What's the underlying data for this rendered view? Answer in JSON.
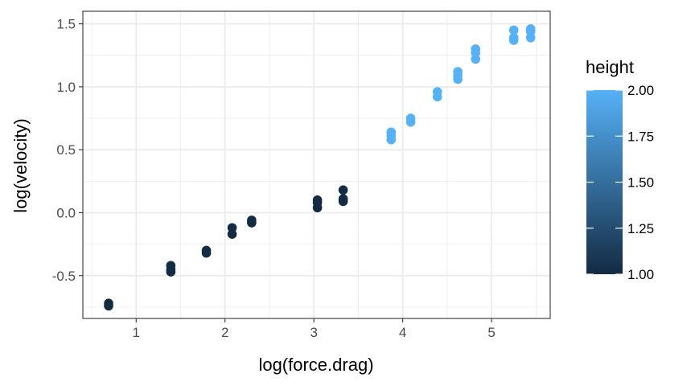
{
  "chart_data": {
    "type": "scatter",
    "xlabel": "log(force.drag)",
    "ylabel": "log(velocity)",
    "xlim": [
      0.4,
      5.66
    ],
    "ylim": [
      -0.84,
      1.6
    ],
    "x_ticks": [
      1,
      2,
      3,
      4,
      5
    ],
    "y_ticks": [
      -0.5,
      0.0,
      0.5,
      1.0,
      1.5
    ],
    "x_tick_labels": [
      "1",
      "2",
      "3",
      "4",
      "5"
    ],
    "y_tick_labels": [
      "-0.5",
      "0.0",
      "0.5",
      "1.0",
      "1.5"
    ],
    "grid": true,
    "color_scale": {
      "title": "height",
      "range": [
        1.0,
        2.0
      ],
      "low_color": "#132B43",
      "high_color": "#56B1F7",
      "ticks": [
        1.0,
        1.25,
        1.5,
        1.75,
        2.0
      ],
      "tick_labels": [
        "1.00",
        "1.25",
        "1.50",
        "1.75",
        "2.00"
      ],
      "legend_position": "right"
    },
    "points": [
      {
        "x": 0.69,
        "y": -0.72,
        "height": 1.0
      },
      {
        "x": 0.69,
        "y": -0.74,
        "height": 1.0
      },
      {
        "x": 1.39,
        "y": -0.42,
        "height": 1.0
      },
      {
        "x": 1.39,
        "y": -0.45,
        "height": 1.0
      },
      {
        "x": 1.39,
        "y": -0.47,
        "height": 1.0
      },
      {
        "x": 1.79,
        "y": -0.3,
        "height": 1.0
      },
      {
        "x": 1.79,
        "y": -0.32,
        "height": 1.0
      },
      {
        "x": 2.08,
        "y": -0.12,
        "height": 1.0
      },
      {
        "x": 2.08,
        "y": -0.17,
        "height": 1.0
      },
      {
        "x": 2.3,
        "y": -0.06,
        "height": 1.0
      },
      {
        "x": 2.3,
        "y": -0.08,
        "height": 1.0
      },
      {
        "x": 3.04,
        "y": 0.1,
        "height": 1.0
      },
      {
        "x": 3.04,
        "y": 0.08,
        "height": 1.0
      },
      {
        "x": 3.04,
        "y": 0.04,
        "height": 1.0
      },
      {
        "x": 3.33,
        "y": 0.18,
        "height": 1.0
      },
      {
        "x": 3.33,
        "y": 0.11,
        "height": 1.0
      },
      {
        "x": 3.33,
        "y": 0.09,
        "height": 1.0
      },
      {
        "x": 3.87,
        "y": 0.64,
        "height": 2.0
      },
      {
        "x": 3.87,
        "y": 0.61,
        "height": 2.0
      },
      {
        "x": 3.87,
        "y": 0.58,
        "height": 2.0
      },
      {
        "x": 4.09,
        "y": 0.75,
        "height": 2.0
      },
      {
        "x": 4.09,
        "y": 0.72,
        "height": 2.0
      },
      {
        "x": 4.39,
        "y": 0.96,
        "height": 2.0
      },
      {
        "x": 4.39,
        "y": 0.92,
        "height": 2.0
      },
      {
        "x": 4.62,
        "y": 1.12,
        "height": 2.0
      },
      {
        "x": 4.62,
        "y": 1.09,
        "height": 2.0
      },
      {
        "x": 4.62,
        "y": 1.06,
        "height": 2.0
      },
      {
        "x": 4.82,
        "y": 1.3,
        "height": 2.0
      },
      {
        "x": 4.82,
        "y": 1.27,
        "height": 2.0
      },
      {
        "x": 4.82,
        "y": 1.22,
        "height": 2.0
      },
      {
        "x": 5.25,
        "y": 1.45,
        "height": 2.0
      },
      {
        "x": 5.25,
        "y": 1.39,
        "height": 2.0
      },
      {
        "x": 5.25,
        "y": 1.37,
        "height": 2.0
      },
      {
        "x": 5.44,
        "y": 1.46,
        "height": 2.0
      },
      {
        "x": 5.44,
        "y": 1.44,
        "height": 2.0
      },
      {
        "x": 5.44,
        "y": 1.39,
        "height": 2.0
      }
    ]
  }
}
